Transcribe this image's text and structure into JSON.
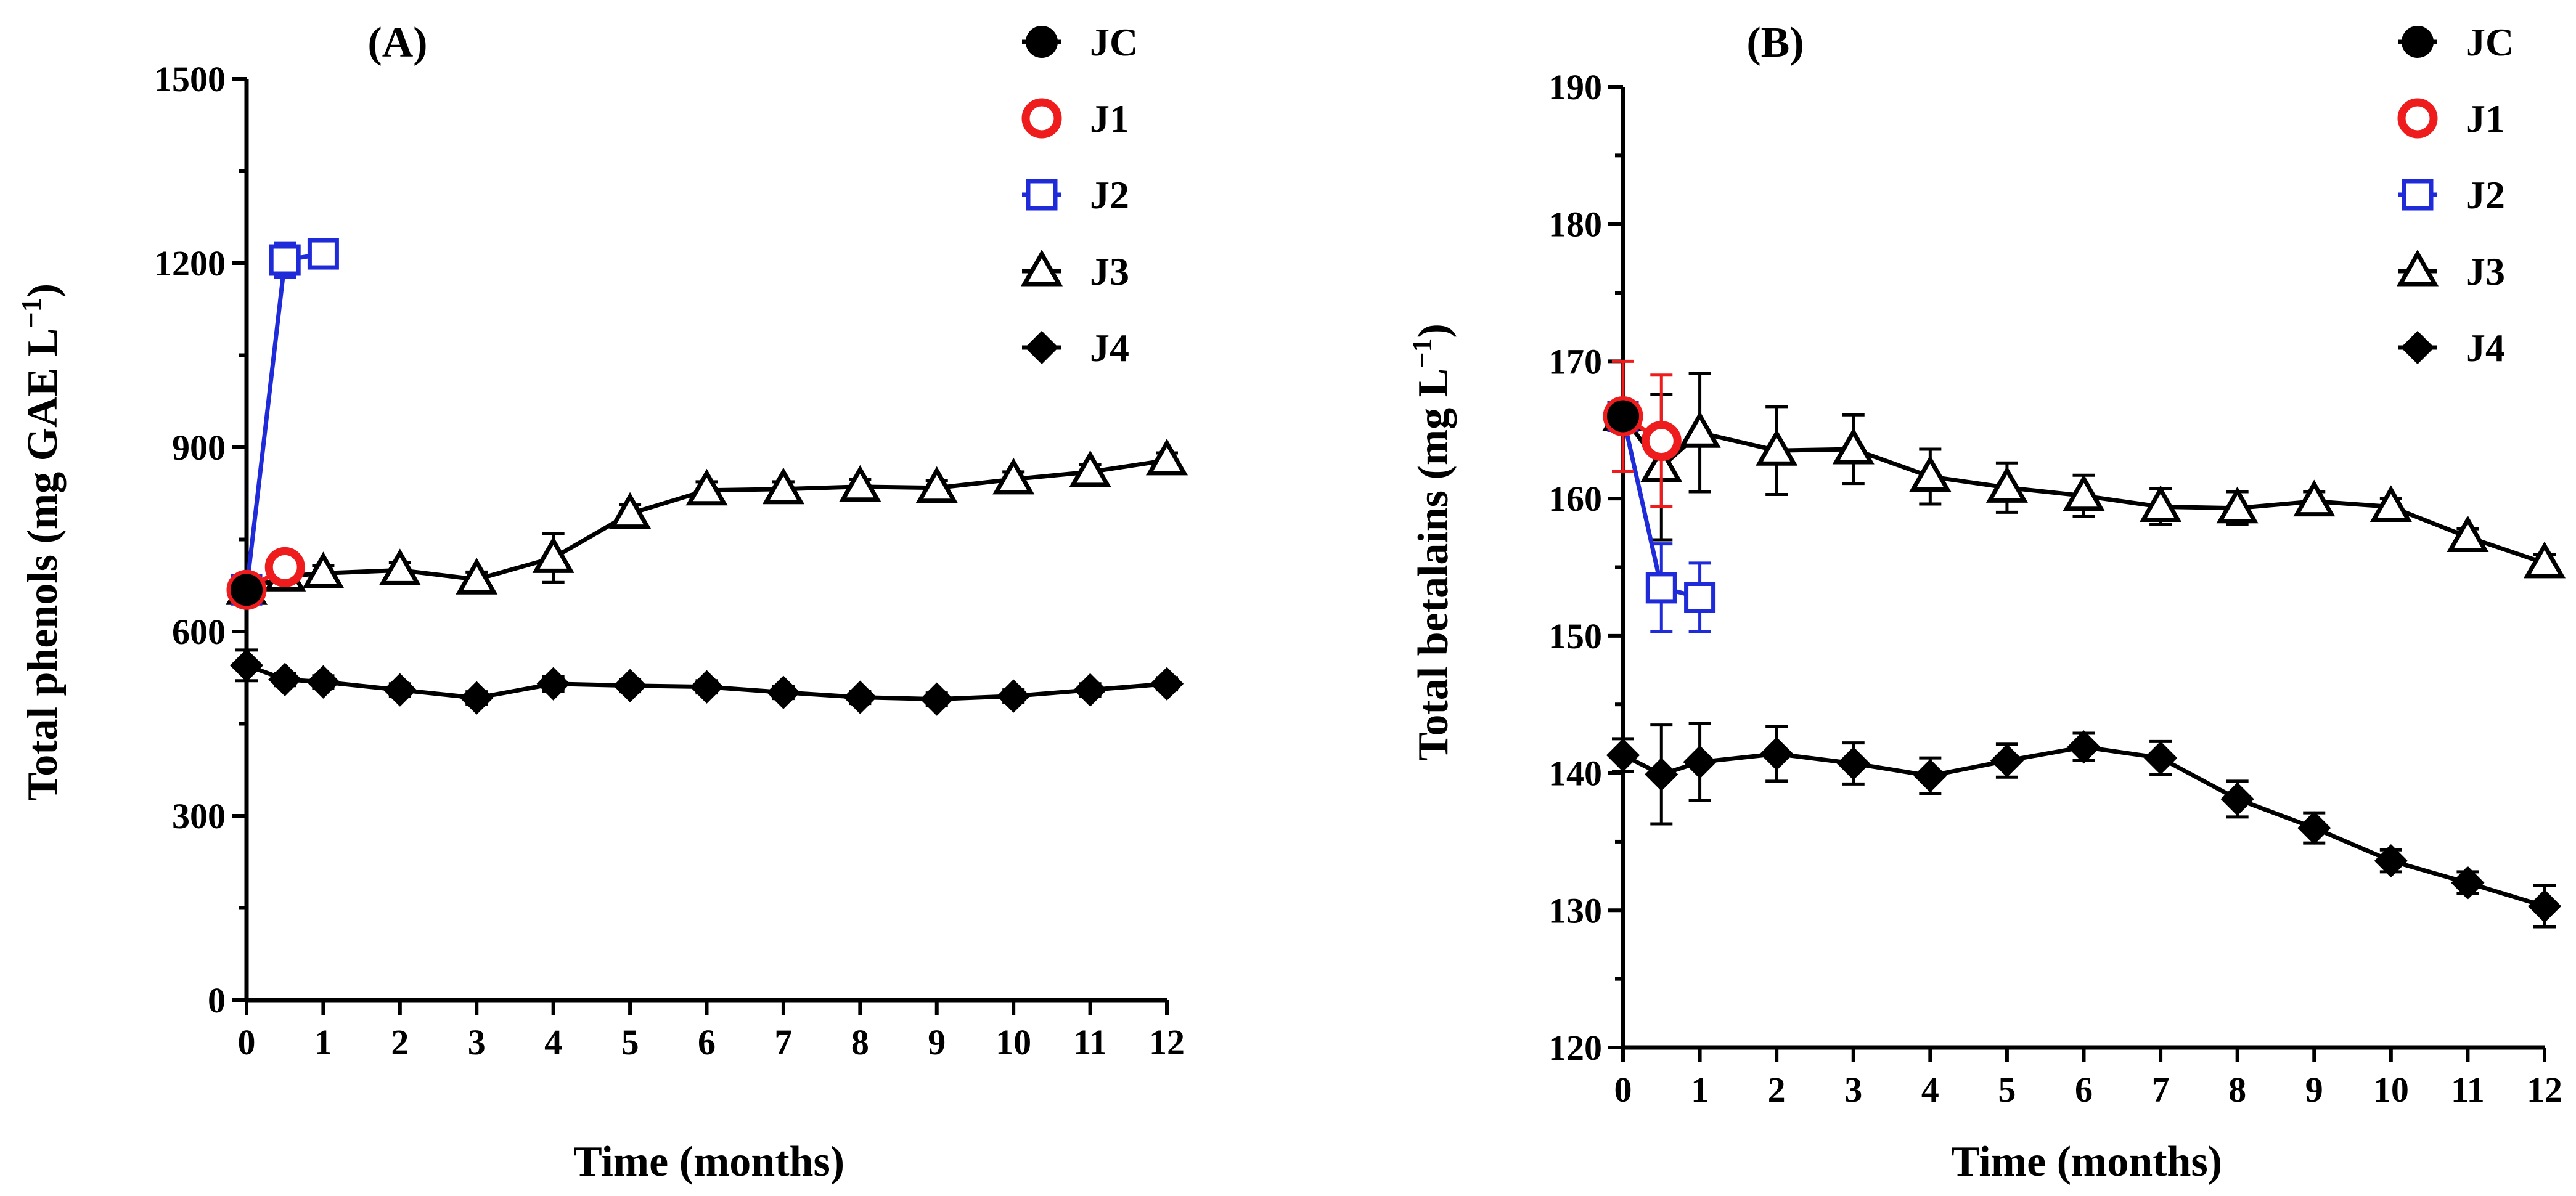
{
  "chart_data": [
    {
      "panel": "(A)",
      "type": "line",
      "xlabel": "Time (months)",
      "ylabel": "Total phenols (mg GAE L",
      "ylabel_unit_exponent": "−1",
      "ylabel_close": ")",
      "xlim": [
        0,
        12
      ],
      "ylim": [
        0,
        1500
      ],
      "xticks": [
        "0",
        "1",
        "2",
        "3",
        "4",
        "5",
        "6",
        "7",
        "8",
        "9",
        "10",
        "11",
        "12"
      ],
      "yticks": [
        "0",
        "300",
        "600",
        "900",
        "1200",
        "1500"
      ],
      "legend_position": "top-right",
      "series": [
        {
          "name": "JC",
          "color": "#000000",
          "marker": "filled-circle",
          "x": [
            0
          ],
          "y": [
            668
          ],
          "err": [
            10
          ]
        },
        {
          "name": "J1",
          "color": "#ee1c1c",
          "marker": "open-circle",
          "x": [
            0,
            0.5
          ],
          "y": [
            668,
            705
          ],
          "err": [
            10,
            10
          ]
        },
        {
          "name": "J2",
          "color": "#1f2bd9",
          "marker": "open-square",
          "x": [
            0,
            0.5,
            1
          ],
          "y": [
            668,
            1205,
            1215
          ],
          "err": [
            10,
            28,
            12
          ]
        },
        {
          "name": "J3",
          "color": "#000000",
          "marker": "open-triangle",
          "x": [
            0,
            0.5,
            1,
            2,
            3,
            4,
            5,
            6,
            7,
            8,
            9,
            10,
            11,
            12
          ],
          "y": [
            668,
            690,
            695,
            700,
            685,
            720,
            792,
            830,
            832,
            836,
            834,
            848,
            860,
            879
          ],
          "err": [
            10,
            12,
            12,
            12,
            12,
            40,
            15,
            14,
            12,
            12,
            12,
            12,
            12,
            12
          ]
        },
        {
          "name": "J4",
          "color": "#000000",
          "marker": "filled-diamond",
          "x": [
            0,
            0.5,
            1,
            2,
            3,
            4,
            5,
            6,
            7,
            8,
            9,
            10,
            11,
            12
          ],
          "y": [
            545,
            522,
            518,
            505,
            492,
            515,
            512,
            510,
            501,
            493,
            490,
            495,
            505,
            515
          ],
          "err": [
            25,
            10,
            10,
            10,
            10,
            12,
            10,
            10,
            10,
            10,
            10,
            10,
            10,
            10
          ]
        }
      ]
    },
    {
      "panel": "(B)",
      "type": "line",
      "xlabel": "Time (months)",
      "ylabel": "Total betalains (mg L",
      "ylabel_unit_exponent": "−1",
      "ylabel_close": ")",
      "xlim": [
        0,
        12
      ],
      "ylim": [
        120,
        190
      ],
      "xticks": [
        "0",
        "1",
        "2",
        "3",
        "4",
        "5",
        "6",
        "7",
        "8",
        "9",
        "10",
        "11",
        "12"
      ],
      "yticks": [
        "120",
        "130",
        "140",
        "150",
        "160",
        "170",
        "180",
        "190"
      ],
      "legend_position": "top-right",
      "series": [
        {
          "name": "JC",
          "color": "#000000",
          "marker": "filled-circle",
          "x": [
            0
          ],
          "y": [
            166
          ],
          "err": [
            0.6
          ]
        },
        {
          "name": "J1",
          "color": "#ee1c1c",
          "marker": "open-circle",
          "x": [
            0,
            0.5
          ],
          "y": [
            166,
            164.2
          ],
          "err": [
            4,
            4.8
          ]
        },
        {
          "name": "J2",
          "color": "#1f2bd9",
          "marker": "open-square",
          "x": [
            0,
            0.5,
            1
          ],
          "y": [
            166,
            153.5,
            152.8
          ],
          "err": [
            0.6,
            3.2,
            2.5
          ]
        },
        {
          "name": "J3",
          "color": "#000000",
          "marker": "open-triangle",
          "x": [
            0,
            0.5,
            1,
            2,
            3,
            4,
            5,
            6,
            7,
            8,
            9,
            10,
            11,
            12
          ],
          "y": [
            166,
            162.3,
            164.8,
            163.5,
            163.6,
            161.6,
            160.8,
            160.2,
            159.4,
            159.3,
            159.8,
            159.4,
            157.2,
            155.3
          ],
          "err": [
            0.6,
            5.3,
            4.3,
            3.2,
            2.5,
            2.0,
            1.8,
            1.5,
            1.3,
            1.2,
            0.7,
            0.6,
            0.6,
            0.6
          ]
        },
        {
          "name": "J4",
          "color": "#000000",
          "marker": "filled-diamond",
          "x": [
            0,
            0.5,
            1,
            2,
            3,
            4,
            5,
            6,
            7,
            8,
            9,
            10,
            11,
            12
          ],
          "y": [
            141.3,
            139.9,
            140.8,
            141.4,
            140.7,
            139.8,
            140.9,
            141.9,
            141.1,
            138.1,
            136.0,
            133.6,
            132.0,
            130.3
          ],
          "err": [
            1.2,
            3.6,
            2.8,
            2.0,
            1.5,
            1.3,
            1.2,
            1.0,
            1.2,
            1.3,
            1.1,
            0.8,
            0.8,
            1.5
          ]
        }
      ]
    }
  ]
}
